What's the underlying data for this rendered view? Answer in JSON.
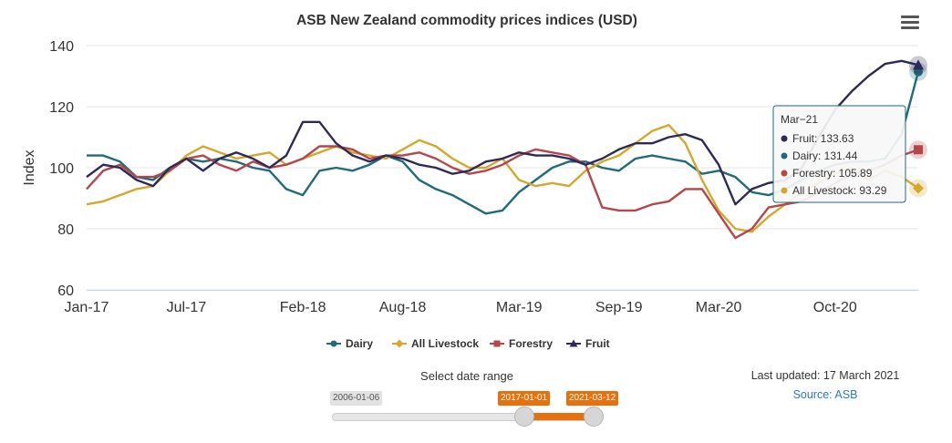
{
  "header": {
    "title": "ASB New Zealand commodity prices indices (USD)"
  },
  "colors": {
    "dairy": "#206a7c",
    "livestock": "#d4a82c",
    "forestry": "#b5474b",
    "fruit": "#2e2a58",
    "accent": "#e8710e"
  },
  "icons": {
    "menu": "hamburger-menu-icon"
  },
  "chart_data": {
    "type": "line",
    "title": "ASB New Zealand commodity prices indices (USD)",
    "xlabel": "",
    "ylabel": "Index",
    "ylim": [
      60,
      140
    ],
    "yticks": [
      "60",
      "80",
      "100",
      "120",
      "140"
    ],
    "xticks": [
      "Jan-17",
      "Jul-17",
      "Feb-18",
      "Aug-18",
      "Mar-19",
      "Sep-19",
      "Mar-20",
      "Oct-20"
    ],
    "grid": "horizontal",
    "legend_position": "bottom",
    "x": [
      "2017-01",
      "2017-02",
      "2017-03",
      "2017-04",
      "2017-05",
      "2017-06",
      "2017-07",
      "2017-08",
      "2017-09",
      "2017-10",
      "2017-11",
      "2017-12",
      "2018-01",
      "2018-02",
      "2018-03",
      "2018-04",
      "2018-05",
      "2018-06",
      "2018-07",
      "2018-08",
      "2018-09",
      "2018-10",
      "2018-11",
      "2018-12",
      "2019-01",
      "2019-02",
      "2019-03",
      "2019-04",
      "2019-05",
      "2019-06",
      "2019-07",
      "2019-08",
      "2019-09",
      "2019-10",
      "2019-11",
      "2019-12",
      "2020-01",
      "2020-02",
      "2020-03",
      "2020-04",
      "2020-05",
      "2020-06",
      "2020-07",
      "2020-08",
      "2020-09",
      "2020-10",
      "2020-11",
      "2020-12",
      "2021-01",
      "2021-02",
      "2021-03"
    ],
    "series": [
      {
        "name": "Dairy",
        "values": [
          104,
          104,
          102,
          97,
          96,
          100,
          103,
          102,
          103,
          102,
          100,
          99,
          93,
          91,
          99,
          100,
          99,
          101,
          104,
          102,
          96,
          93,
          91,
          88,
          85,
          86,
          92,
          96,
          100,
          102,
          102,
          100,
          99,
          103,
          104,
          103,
          102,
          98,
          99,
          97,
          92,
          91,
          93,
          96,
          99,
          101,
          102,
          102,
          103,
          111,
          131.44
        ]
      },
      {
        "name": "All Livestock",
        "values": [
          88,
          89,
          91,
          93,
          94,
          99,
          104,
          107,
          105,
          103,
          104,
          105,
          101,
          103,
          105,
          107,
          105,
          104,
          103,
          106,
          109,
          107,
          103,
          100,
          100,
          103,
          96,
          94,
          95,
          94,
          99,
          102,
          104,
          108,
          112,
          114,
          108,
          96,
          86,
          80,
          79,
          84,
          88,
          92,
          95,
          98,
          100,
          96,
          99,
          97,
          93.29
        ]
      },
      {
        "name": "Forestry",
        "values": [
          93,
          99,
          101,
          97,
          97,
          99,
          103,
          104,
          101,
          99,
          102,
          100,
          101,
          103,
          107,
          107,
          106,
          103,
          104,
          104,
          105,
          103,
          100,
          98,
          99,
          101,
          104,
          106,
          105,
          104,
          101,
          87,
          86,
          86,
          88,
          89,
          93,
          93,
          85,
          77,
          80,
          87,
          88,
          89,
          92,
          95,
          98,
          99,
          101,
          104,
          105.89
        ]
      },
      {
        "name": "Fruit",
        "values": [
          97,
          101,
          100,
          96,
          94,
          100,
          103,
          99,
          103,
          105,
          103,
          100,
          104,
          115,
          115,
          108,
          104,
          102,
          104,
          103,
          101,
          100,
          98,
          99,
          102,
          103,
          105,
          104,
          104,
          103,
          101,
          103,
          106,
          108,
          108,
          110,
          111,
          109,
          101,
          88,
          93,
          95,
          96,
          100,
          110,
          119,
          125,
          130,
          134,
          135,
          133.63
        ]
      }
    ],
    "tooltip": {
      "title": "Mar−21",
      "rows": [
        {
          "label": "Fruit: 133.63",
          "series": "fruit"
        },
        {
          "label": "Dairy: 131.44",
          "series": "dairy"
        },
        {
          "label": "Forestry: 105.89",
          "series": "forestry"
        },
        {
          "label": "All Livestock: 93.29",
          "series": "livestock"
        }
      ]
    }
  },
  "range_selector": {
    "title": "Select date range",
    "min_label": "2006-01-06",
    "from_label": "2017-01-01",
    "to_label": "2021-03-12"
  },
  "footer": {
    "updated": "Last updated: 17 March 2021",
    "source": "Source: ASB"
  }
}
